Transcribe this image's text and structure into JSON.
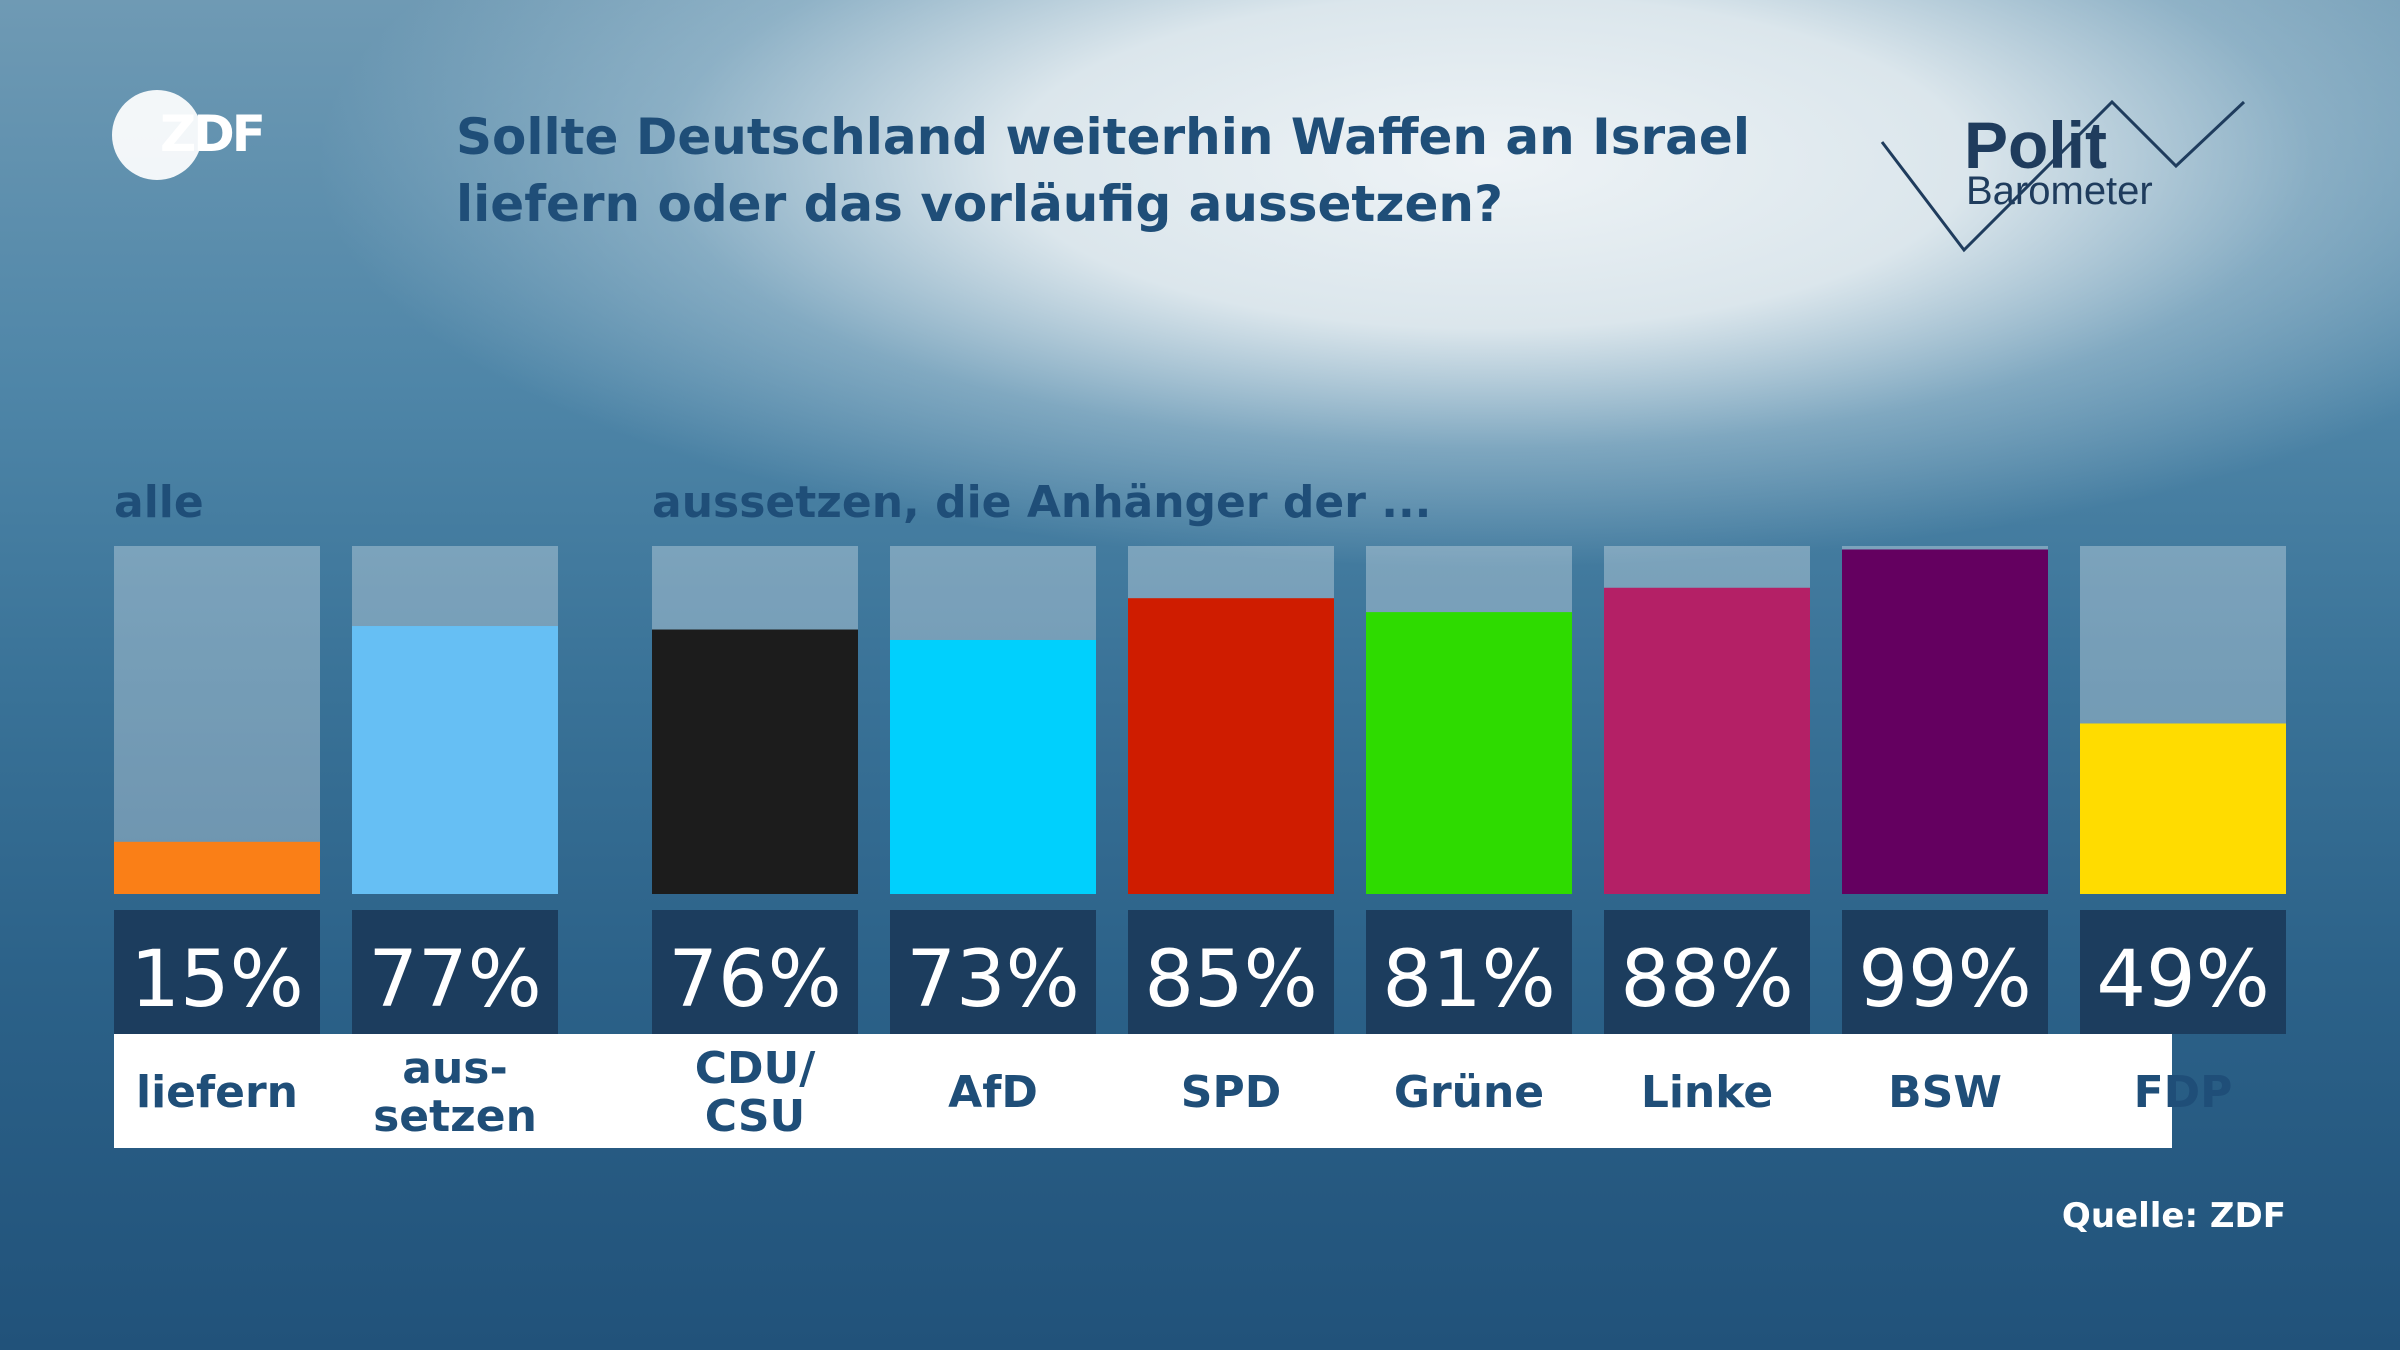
{
  "title": "Sollte Deutschland weiterhin Waffen an Israel liefern oder das vorläufig aussetzen?",
  "logos": {
    "broadcaster": "ZDF",
    "program_line1": "Polit",
    "program_line2": "Barometer"
  },
  "labels": {
    "group_all": "alle",
    "group_parties": "aussetzen, die Anhänger der ..."
  },
  "source": "Quelle: ZDF",
  "chart_data": {
    "type": "bar",
    "unit": "%",
    "ylim": [
      0,
      100
    ],
    "grid": false,
    "categories": [
      "liefern",
      "aus-\nsetzen",
      "CDU/\nCSU",
      "AfD",
      "SPD",
      "Grüne",
      "Linke",
      "BSW",
      "FDP"
    ],
    "values": [
      15,
      77,
      76,
      73,
      85,
      81,
      88,
      99,
      49
    ],
    "value_labels": [
      "15%",
      "77%",
      "76%",
      "73%",
      "85%",
      "81%",
      "88%",
      "99%",
      "49%"
    ],
    "colors": [
      "#fa7f17",
      "#66bff4",
      "#1c1c1c",
      "#00d0fd",
      "#cf1c00",
      "#2edb00",
      "#b42066",
      "#640060",
      "#ffdc00"
    ],
    "groups": [
      {
        "label": "alle",
        "indices": [
          0,
          1
        ]
      },
      {
        "label": "aussetzen, die Anhänger der ...",
        "indices": [
          2,
          3,
          4,
          5,
          6,
          7,
          8
        ]
      }
    ]
  }
}
